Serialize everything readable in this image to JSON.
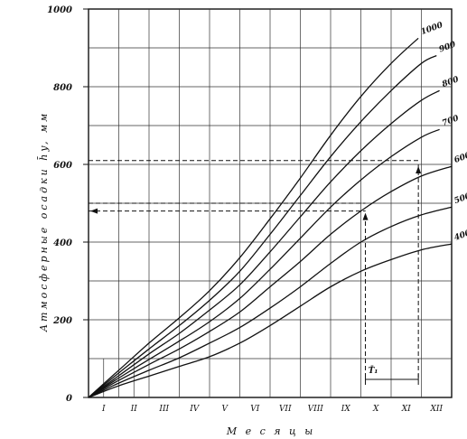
{
  "chart_data": {
    "type": "line",
    "title": "",
    "ylabel": "Атмосферные осадки h̄y, мм",
    "xlabel": "М е с я ц ы",
    "y_ticks": [
      "0",
      "200",
      "400",
      "600",
      "800",
      "1000"
    ],
    "ylim": [
      0,
      1000
    ],
    "x_ticks": [
      "I",
      "II",
      "III",
      "IV",
      "V",
      "VI",
      "VII",
      "VIII",
      "IX",
      "X",
      "XI",
      "XII"
    ],
    "xlim": [
      0,
      12
    ],
    "grid": true,
    "series": [
      {
        "name": "1000",
        "x": [
          0,
          1,
          2,
          3,
          4,
          5,
          6,
          7,
          8,
          9,
          10,
          10.9
        ],
        "y": [
          0,
          70,
          140,
          205,
          275,
          360,
          460,
          565,
          675,
          775,
          860,
          925
        ]
      },
      {
        "name": "900",
        "x": [
          0,
          1,
          2,
          3,
          4,
          5,
          6,
          7,
          8,
          9,
          10,
          11,
          11.5
        ],
        "y": [
          0,
          63,
          125,
          185,
          250,
          325,
          420,
          520,
          620,
          710,
          790,
          860,
          880
        ]
      },
      {
        "name": "800",
        "x": [
          0,
          1,
          2,
          3,
          4,
          5,
          6,
          7,
          8,
          9,
          10,
          11,
          11.6
        ],
        "y": [
          0,
          56,
          112,
          165,
          225,
          290,
          375,
          465,
          555,
          635,
          705,
          765,
          790
        ]
      },
      {
        "name": "700",
        "x": [
          0,
          1,
          2,
          3,
          4,
          5,
          6,
          7,
          8,
          9,
          10,
          11,
          11.6
        ],
        "y": [
          0,
          50,
          98,
          145,
          195,
          255,
          330,
          410,
          490,
          560,
          620,
          670,
          690
        ]
      },
      {
        "name": "600",
        "x": [
          0,
          1,
          2,
          3,
          4,
          5,
          6,
          7,
          8,
          9,
          10,
          11,
          12
        ],
        "y": [
          0,
          44,
          85,
          125,
          170,
          220,
          285,
          350,
          420,
          480,
          530,
          570,
          595
        ]
      },
      {
        "name": "500",
        "x": [
          0,
          1,
          2,
          3,
          4,
          5,
          6,
          7,
          8,
          9,
          10,
          11,
          12
        ],
        "y": [
          0,
          37,
          70,
          102,
          140,
          180,
          230,
          285,
          345,
          400,
          440,
          470,
          490
        ]
      },
      {
        "name": "400",
        "x": [
          0,
          1,
          2,
          3,
          4,
          5,
          6,
          7,
          8,
          9,
          10,
          11,
          12
        ],
        "y": [
          0,
          30,
          55,
          80,
          105,
          140,
          185,
          235,
          285,
          325,
          355,
          380,
          395
        ]
      }
    ],
    "annotations": [
      {
        "label": "T̄₁"
      }
    ]
  }
}
